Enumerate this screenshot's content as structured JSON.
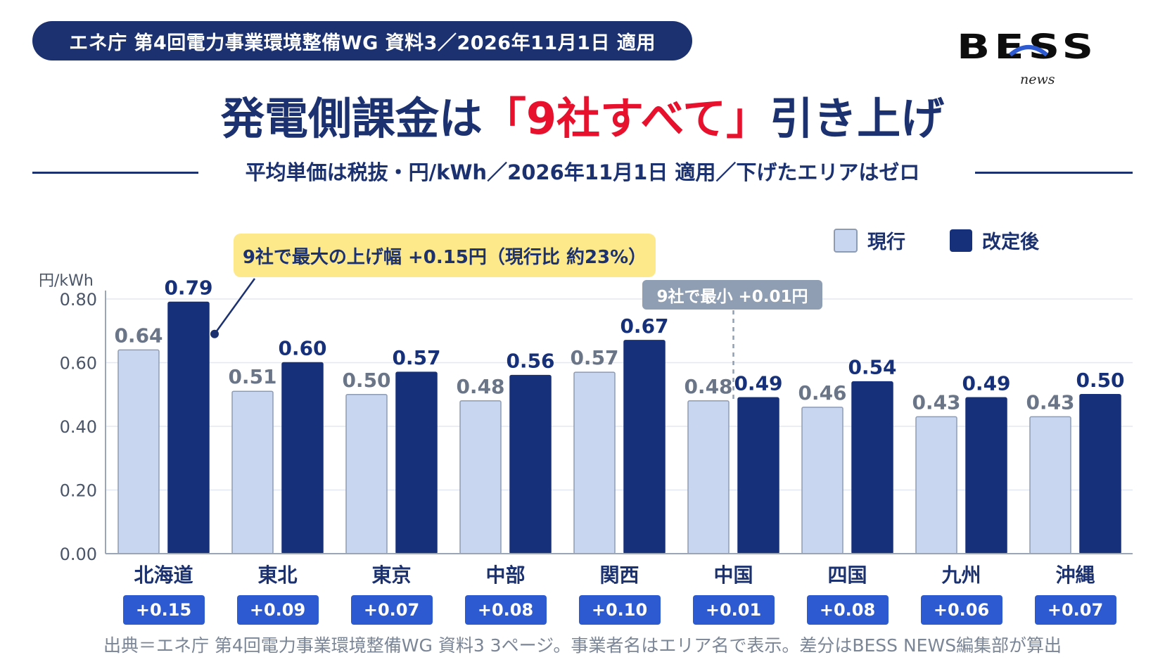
{
  "header": {
    "pill": "エネ庁 第4回電力事業環境整備WG 資料3／2026年11月1日 適用",
    "logo_main": "BESS",
    "logo_sub": "news",
    "title_pre": "発電側課金は",
    "title_accent": "「9社すべて」",
    "title_post": "引き上げ",
    "subtitle": "平均単価は税抜・円/kWh／2026年11月1日 適用／下げたエリアはゼロ"
  },
  "legend": {
    "current": "現行",
    "revised": "改定後"
  },
  "annotations": {
    "max": "9社で最大の上げ幅 +0.15円（現行比 約23%）",
    "min": "9社で最小 +0.01円"
  },
  "colors": {
    "current": "#c8d6ef",
    "current_stroke": "#8d9bb5",
    "revised": "#16307a",
    "badge": "#2d5ad0",
    "accent": "#e8112d",
    "navy": "#1c3170"
  },
  "chart_data": {
    "type": "bar",
    "yunit": "円/kWh",
    "ylim": [
      0,
      0.8
    ],
    "yticks": [
      "0.00",
      "0.20",
      "0.40",
      "0.60",
      "0.80"
    ],
    "grid": true,
    "categories": [
      "北海道",
      "東北",
      "東京",
      "中部",
      "関西",
      "中国",
      "四国",
      "九州",
      "沖縄"
    ],
    "series": [
      {
        "name": "現行",
        "values": [
          0.64,
          0.51,
          0.5,
          0.48,
          0.57,
          0.48,
          0.46,
          0.43,
          0.43
        ],
        "labels": [
          "0.64",
          "0.51",
          "0.50",
          "0.48",
          "0.57",
          "0.48",
          "0.46",
          "0.43",
          "0.43"
        ]
      },
      {
        "name": "改定後",
        "values": [
          0.79,
          0.6,
          0.57,
          0.56,
          0.67,
          0.49,
          0.54,
          0.49,
          0.5
        ],
        "labels": [
          "0.79",
          "0.60",
          "0.57",
          "0.56",
          "0.67",
          "0.49",
          "0.54",
          "0.49",
          "0.50"
        ]
      }
    ],
    "differences": [
      "+0.15",
      "+0.09",
      "+0.07",
      "+0.08",
      "+0.10",
      "+0.01",
      "+0.08",
      "+0.06",
      "+0.07"
    ]
  },
  "source": "出典＝エネ庁 第4回電力事業環境整備WG 資料3 3ページ。事業者名はエリア名で表示。差分はBESS NEWS編集部が算出"
}
